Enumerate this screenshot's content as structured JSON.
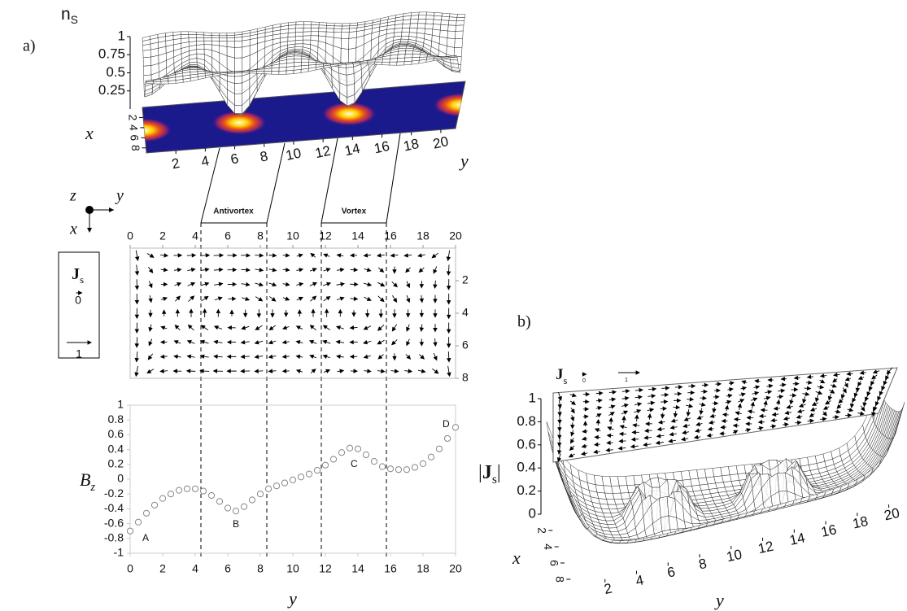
{
  "chart_data": [
    {
      "type": "surface",
      "panel_label": "a)",
      "z_label": {
        "main": "n",
        "sub": "S"
      },
      "x_label": "x",
      "y_label": "y",
      "zlim": [
        0,
        1
      ],
      "zticks": [
        0.25,
        0.5,
        0.75,
        1
      ],
      "xlim": [
        0,
        9
      ],
      "xticks": [
        2,
        4,
        6,
        8
      ],
      "ylim": [
        0,
        21
      ],
      "yticks": [
        2,
        4,
        6,
        8,
        10,
        12,
        14,
        16,
        18,
        20
      ]
    },
    {
      "type": "quiver",
      "axis_labels": {
        "z": "z",
        "y": "y",
        "x": "x"
      },
      "annotations": [
        "Antivortex",
        "Vortex"
      ],
      "legend": {
        "title": {
          "main": "J",
          "sub": "s"
        },
        "scale": [
          0,
          1
        ]
      },
      "xlim": [
        0,
        20
      ],
      "xticks": [
        0,
        2,
        4,
        6,
        8,
        10,
        12,
        14,
        16,
        18,
        20
      ],
      "ylim": [
        0,
        8
      ],
      "yticks": [
        2,
        4,
        6,
        8
      ]
    },
    {
      "type": "scatter",
      "y_label": {
        "main": "B",
        "sub": "z"
      },
      "x_label": "y",
      "color": "#888888",
      "annotations": [
        "A",
        "B",
        "C",
        "D"
      ],
      "x": [
        0,
        0.5,
        1,
        1.5,
        2,
        2.5,
        3,
        3.5,
        4,
        4.5,
        5,
        5.5,
        6,
        6.5,
        7,
        7.5,
        8,
        8.5,
        9,
        9.5,
        10,
        10.5,
        11,
        11.5,
        12,
        12.5,
        13,
        13.5,
        14,
        14.5,
        15,
        15.5,
        16,
        16.5,
        17,
        17.5,
        18,
        18.5,
        19,
        19.5,
        20
      ],
      "values": [
        -0.7,
        -0.58,
        -0.46,
        -0.35,
        -0.26,
        -0.2,
        -0.15,
        -0.13,
        -0.13,
        -0.16,
        -0.22,
        -0.3,
        -0.39,
        -0.43,
        -0.37,
        -0.28,
        -0.2,
        -0.13,
        -0.09,
        -0.05,
        -0.01,
        0.03,
        0.07,
        0.12,
        0.19,
        0.27,
        0.36,
        0.42,
        0.41,
        0.33,
        0.24,
        0.17,
        0.14,
        0.13,
        0.13,
        0.16,
        0.21,
        0.3,
        0.41,
        0.55,
        0.7
      ],
      "xlim": [
        0,
        20
      ],
      "xticks": [
        0,
        2,
        4,
        6,
        8,
        10,
        12,
        14,
        16,
        18,
        20
      ],
      "ylim": [
        -1,
        1
      ],
      "yticks": [
        -1,
        -0.8,
        -0.6,
        -0.4,
        -0.2,
        0,
        0.2,
        0.4,
        0.6,
        0.8,
        1
      ]
    },
    {
      "type": "surface",
      "panel_label": "b)",
      "z_label": {
        "prefix": "|",
        "main": "J",
        "sub": "s",
        "suffix": "|"
      },
      "x_label": "x",
      "y_label": "y",
      "legend": {
        "title": {
          "main": "J",
          "sub": "s"
        },
        "scale": [
          0,
          1
        ]
      },
      "zlim": [
        0,
        1
      ],
      "zticks": [
        0,
        0.2,
        0.4,
        0.6,
        0.8,
        1
      ],
      "xlim": [
        0,
        9
      ],
      "xticks": [
        2,
        4,
        6,
        8
      ],
      "ylim": [
        0,
        21
      ],
      "yticks": [
        2,
        4,
        6,
        8,
        10,
        12,
        14,
        16,
        18,
        20
      ]
    }
  ]
}
